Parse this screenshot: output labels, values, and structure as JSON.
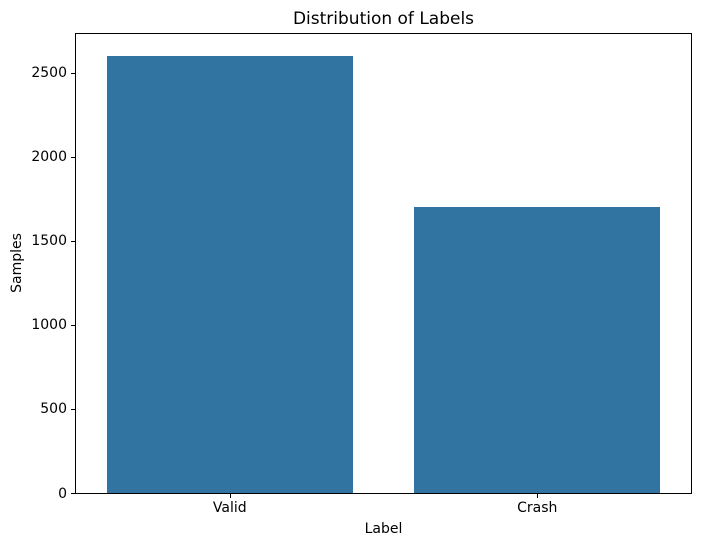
{
  "chart_data": {
    "type": "bar",
    "title": "Distribution of Labels",
    "xlabel": "Label",
    "ylabel": "Samples",
    "categories": [
      "Valid",
      "Crash"
    ],
    "values": [
      2600,
      1700
    ],
    "yticks": [
      0,
      500,
      1000,
      1500,
      2000,
      2500
    ],
    "ylim": [
      0,
      2730
    ],
    "bar_color": "#3274a1",
    "bar_width_fraction": 0.8,
    "grid": false,
    "legend_position": "none",
    "background_color": "#ffffff",
    "spine_color": "#000000"
  }
}
